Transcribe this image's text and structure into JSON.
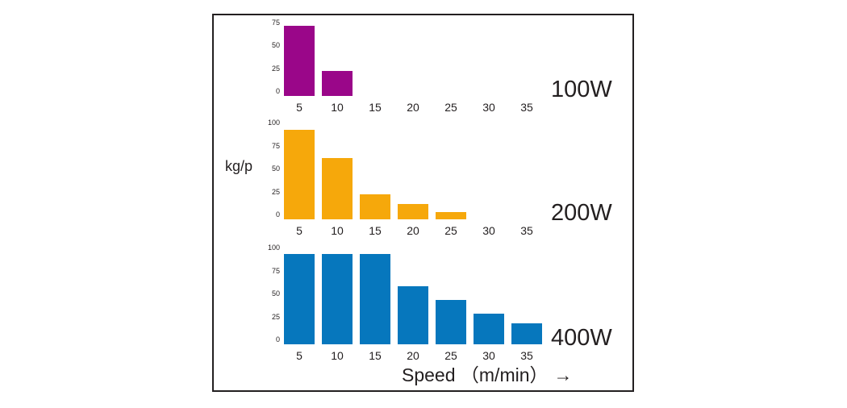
{
  "figure": {
    "ylabel": "kg/p",
    "xlabel_text": "Speed （m/min）",
    "xlabel_arrow": "→",
    "frame_border_color": "#231f20",
    "background_color": "#ffffff",
    "text_color": "#231f20"
  },
  "chart_data": [
    {
      "type": "bar",
      "title": "100W",
      "categories": [
        5,
        10,
        15,
        20,
        25,
        30,
        35
      ],
      "values": [
        76,
        27
      ],
      "color": "#9A0689",
      "yticks": [
        0,
        25,
        50,
        75
      ],
      "ylim": [
        0,
        80
      ],
      "xlabel": "Speed (m/min)",
      "ylabel": "kg/p",
      "grid": false,
      "legend_position": "none"
    },
    {
      "type": "bar",
      "title": "200W",
      "categories": [
        5,
        10,
        15,
        20,
        25,
        30,
        35
      ],
      "values": [
        97,
        67,
        27,
        17,
        8
      ],
      "color": "#F6A80B",
      "yticks": [
        0,
        25,
        50,
        75,
        100
      ],
      "ylim": [
        0,
        100
      ],
      "xlabel": "Speed (m/min)",
      "ylabel": "kg/p",
      "grid": false,
      "legend_position": "none"
    },
    {
      "type": "bar",
      "title": "400W",
      "categories": [
        5,
        10,
        15,
        20,
        25,
        30,
        35
      ],
      "values": [
        98,
        98,
        98,
        63,
        48,
        33,
        23
      ],
      "color": "#0677BD",
      "yticks": [
        0,
        25,
        50,
        75,
        100
      ],
      "ylim": [
        0,
        100
      ],
      "xlabel": "Speed (m/min)",
      "ylabel": "kg/p",
      "grid": false,
      "legend_position": "none"
    }
  ]
}
